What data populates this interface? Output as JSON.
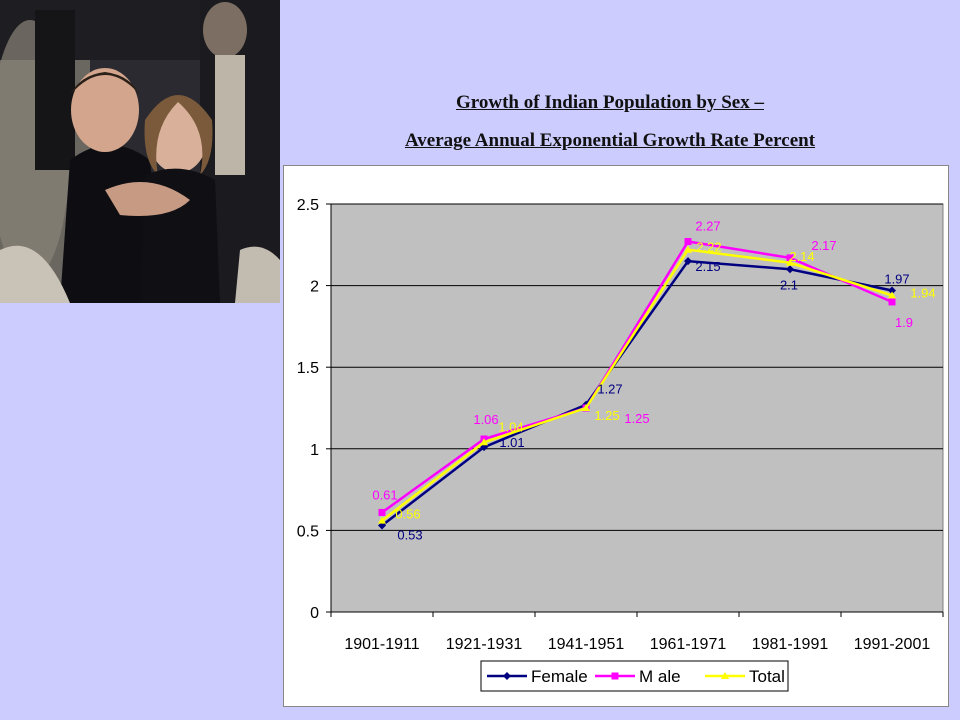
{
  "titles": {
    "line1": "Growth of Indian Population by Sex –",
    "line2": "Average Annual Exponential Growth Rate Percent"
  },
  "photo": {
    "description_icon": "photo-children-dancing"
  },
  "chart_data": {
    "type": "line",
    "title": "",
    "xlabel": "",
    "ylabel": "",
    "ylim": [
      0,
      2.5
    ],
    "yticks": [
      "0",
      "0.5",
      "1",
      "1.5",
      "2",
      "2.5"
    ],
    "categories": [
      "1901-1911",
      "1921-1931",
      "1941-1951",
      "1961-1971",
      "1981-1991",
      "1991-2001"
    ],
    "grid": true,
    "legend_position": "bottom",
    "series": [
      {
        "name": "Female",
        "color": "#000080",
        "values": [
          0.53,
          1.01,
          1.27,
          2.15,
          2.1,
          1.97
        ],
        "labels": [
          "0.53",
          "1.01",
          "1.27",
          "2.15",
          "2.1",
          "1.97"
        ]
      },
      {
        "name": "M ale",
        "color": "#ff00ff",
        "values": [
          0.61,
          1.06,
          1.25,
          2.27,
          2.17,
          1.9
        ],
        "labels": [
          "0.61",
          "1.06",
          "1.25",
          "2.27",
          "2.17",
          "1.9"
        ]
      },
      {
        "name": "Total",
        "color": "#ffff00",
        "values": [
          0.56,
          1.04,
          1.25,
          2.22,
          2.14,
          1.94
        ],
        "labels": [
          "0.56",
          "1.04",
          "1.25",
          "2.22",
          "2.14",
          "1.94"
        ]
      }
    ]
  }
}
